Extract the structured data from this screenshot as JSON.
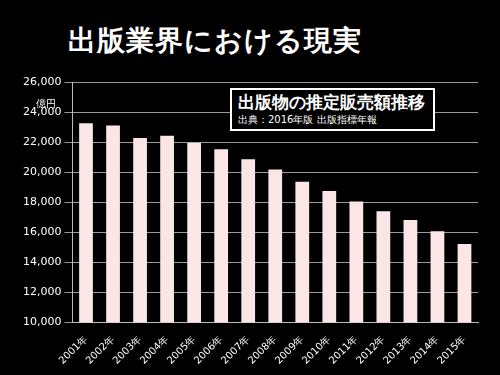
{
  "header": {
    "title": "出版業界における現実"
  },
  "chart_data": {
    "type": "bar",
    "title": "出版物の推定販売額推移",
    "subtitle": "出典：2016年版 出版指標年報",
    "y_label": "億円",
    "categories": [
      "2001年",
      "2002年",
      "2003年",
      "2004年",
      "2005年",
      "2006年",
      "2007年",
      "2008年",
      "2009年",
      "2010年",
      "2011年",
      "2012年",
      "2013年",
      "2014年",
      "2015年"
    ],
    "values": [
      23250,
      23105,
      22278,
      22428,
      21964,
      21525,
      20853,
      20177,
      19356,
      18748,
      18042,
      17398,
      16823,
      16065,
      15220
    ],
    "color": "#fbe6e6",
    "ylim": [
      10000,
      26000
    ],
    "yticks": [
      {
        "value": 10000,
        "label": "10,000"
      },
      {
        "value": 12000,
        "label": "12,000"
      },
      {
        "value": 14000,
        "label": "14,000"
      },
      {
        "value": 16000,
        "label": "16,000"
      },
      {
        "value": 18000,
        "label": "18,000"
      },
      {
        "value": 20000,
        "label": "20,000"
      },
      {
        "value": 22000,
        "label": "22,000"
      },
      {
        "value": 24000,
        "label": "24,000"
      },
      {
        "value": 26000,
        "label": "26,000"
      }
    ],
    "grid": true
  }
}
